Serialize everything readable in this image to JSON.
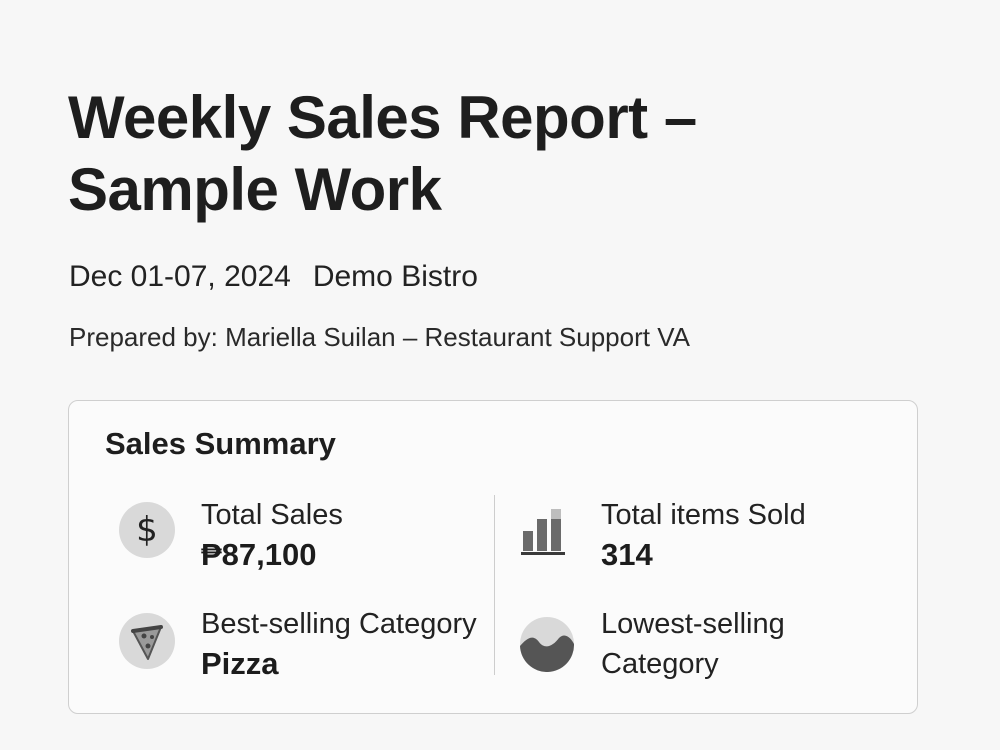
{
  "title": "Weekly Sales Report – Sample Work",
  "date_range": "Dec 01-07, 2024",
  "venue": "Demo Bistro",
  "prepared_by": "Prepared by: Mariella Suilan – Restaurant Support VA",
  "summary": {
    "title": "Sales Summary",
    "metrics": [
      {
        "label": "Total Sales",
        "value": "₱87,100",
        "icon": "dollar-icon"
      },
      {
        "label": "Total items Sold",
        "value": "314",
        "icon": "bar-chart-icon"
      },
      {
        "label": "Best-selling Category",
        "value": "Pizza",
        "icon": "pizza-slice-icon"
      },
      {
        "label": "Lowest-selling",
        "value": "Category",
        "icon": "pie-chart-icon"
      }
    ]
  },
  "colors": {
    "background": "#f7f7f7",
    "text": "#1c1c1c",
    "icon_fill": "#d9d9d9",
    "icon_dark": "#5a5a5a",
    "card_border": "#cfcfcf"
  }
}
